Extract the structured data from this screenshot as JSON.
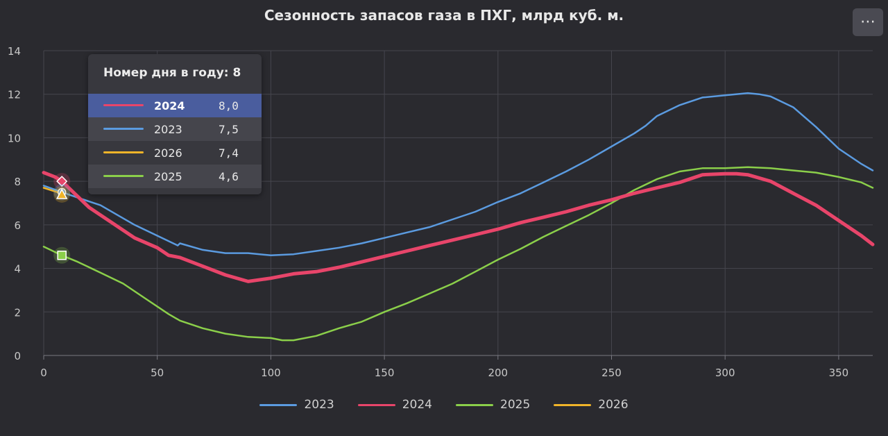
{
  "header": {
    "title": "Сезонность запасов газа в ПХГ, млрд куб. м.",
    "menu_label": "⋯"
  },
  "chart_data": {
    "type": "line",
    "title": "Сезонность запасов газа в ПХГ, млрд куб. м.",
    "xlabel": "",
    "ylabel": "",
    "xlim": [
      0,
      365
    ],
    "ylim": [
      0,
      14
    ],
    "x_ticks": [
      0,
      50,
      100,
      150,
      200,
      250,
      300,
      350
    ],
    "y_ticks": [
      0,
      2,
      4,
      6,
      8,
      10,
      12,
      14
    ],
    "grid": true,
    "legend_position": "bottom",
    "series": [
      {
        "name": "2023",
        "color": "#5b9be0",
        "points": [
          [
            0,
            7.8
          ],
          [
            8,
            7.5
          ],
          [
            15,
            7.25
          ],
          [
            25,
            6.9
          ],
          [
            40,
            6.0
          ],
          [
            50,
            5.5
          ],
          [
            59,
            5.05
          ],
          [
            60,
            5.15
          ],
          [
            70,
            4.85
          ],
          [
            80,
            4.7
          ],
          [
            90,
            4.7
          ],
          [
            100,
            4.6
          ],
          [
            110,
            4.65
          ],
          [
            120,
            4.8
          ],
          [
            130,
            4.95
          ],
          [
            140,
            5.15
          ],
          [
            150,
            5.4
          ],
          [
            160,
            5.65
          ],
          [
            170,
            5.9
          ],
          [
            180,
            6.25
          ],
          [
            190,
            6.6
          ],
          [
            200,
            7.05
          ],
          [
            210,
            7.45
          ],
          [
            220,
            7.95
          ],
          [
            230,
            8.45
          ],
          [
            240,
            9.0
          ],
          [
            250,
            9.6
          ],
          [
            260,
            10.2
          ],
          [
            265,
            10.55
          ],
          [
            270,
            11.0
          ],
          [
            280,
            11.5
          ],
          [
            290,
            11.85
          ],
          [
            300,
            11.95
          ],
          [
            310,
            12.05
          ],
          [
            315,
            12.0
          ],
          [
            320,
            11.9
          ],
          [
            330,
            11.4
          ],
          [
            340,
            10.5
          ],
          [
            350,
            9.5
          ],
          [
            360,
            8.8
          ],
          [
            365,
            8.5
          ]
        ]
      },
      {
        "name": "2024",
        "color": "#e8456a",
        "points": [
          [
            0,
            8.4
          ],
          [
            5,
            8.2
          ],
          [
            8,
            8.0
          ],
          [
            15,
            7.3
          ],
          [
            20,
            6.8
          ],
          [
            30,
            6.1
          ],
          [
            40,
            5.4
          ],
          [
            50,
            4.95
          ],
          [
            55,
            4.6
          ],
          [
            60,
            4.5
          ],
          [
            70,
            4.1
          ],
          [
            80,
            3.7
          ],
          [
            90,
            3.4
          ],
          [
            100,
            3.55
          ],
          [
            110,
            3.75
          ],
          [
            120,
            3.85
          ],
          [
            130,
            4.05
          ],
          [
            140,
            4.3
          ],
          [
            150,
            4.55
          ],
          [
            160,
            4.8
          ],
          [
            170,
            5.05
          ],
          [
            180,
            5.3
          ],
          [
            190,
            5.55
          ],
          [
            200,
            5.8
          ],
          [
            210,
            6.1
          ],
          [
            220,
            6.35
          ],
          [
            230,
            6.6
          ],
          [
            240,
            6.9
          ],
          [
            250,
            7.15
          ],
          [
            260,
            7.45
          ],
          [
            270,
            7.7
          ],
          [
            280,
            7.95
          ],
          [
            290,
            8.3
          ],
          [
            300,
            8.35
          ],
          [
            305,
            8.35
          ],
          [
            310,
            8.3
          ],
          [
            320,
            8.0
          ],
          [
            330,
            7.45
          ],
          [
            340,
            6.9
          ],
          [
            350,
            6.2
          ],
          [
            360,
            5.5
          ],
          [
            365,
            5.1
          ]
        ]
      },
      {
        "name": "2025",
        "color": "#8bcf4a",
        "points": [
          [
            0,
            5.0
          ],
          [
            8,
            4.6
          ],
          [
            15,
            4.3
          ],
          [
            25,
            3.8
          ],
          [
            35,
            3.3
          ],
          [
            45,
            2.6
          ],
          [
            55,
            1.9
          ],
          [
            60,
            1.6
          ],
          [
            70,
            1.25
          ],
          [
            80,
            1.0
          ],
          [
            90,
            0.85
          ],
          [
            100,
            0.8
          ],
          [
            105,
            0.7
          ],
          [
            110,
            0.7
          ],
          [
            120,
            0.9
          ],
          [
            130,
            1.25
          ],
          [
            140,
            1.55
          ],
          [
            150,
            2.0
          ],
          [
            160,
            2.4
          ],
          [
            170,
            2.85
          ],
          [
            180,
            3.3
          ],
          [
            190,
            3.85
          ],
          [
            200,
            4.4
          ],
          [
            210,
            4.9
          ],
          [
            220,
            5.45
          ],
          [
            230,
            5.95
          ],
          [
            240,
            6.45
          ],
          [
            250,
            7.0
          ],
          [
            260,
            7.6
          ],
          [
            270,
            8.1
          ],
          [
            280,
            8.45
          ],
          [
            290,
            8.6
          ],
          [
            300,
            8.6
          ],
          [
            310,
            8.65
          ],
          [
            320,
            8.6
          ],
          [
            330,
            8.5
          ],
          [
            340,
            8.4
          ],
          [
            350,
            8.2
          ],
          [
            360,
            7.95
          ],
          [
            365,
            7.7
          ]
        ]
      },
      {
        "name": "2026",
        "color": "#f0b429",
        "points": [
          [
            0,
            7.7
          ],
          [
            3,
            7.6
          ],
          [
            6,
            7.5
          ],
          [
            8,
            7.4
          ]
        ]
      }
    ],
    "markers": [
      {
        "series": "2024",
        "x": 8,
        "y": 8.0,
        "shape": "diamond"
      },
      {
        "series": "2023",
        "x": 8,
        "y": 7.5,
        "shape": "circle"
      },
      {
        "series": "2026",
        "x": 8,
        "y": 7.4,
        "shape": "triangle"
      },
      {
        "series": "2025",
        "x": 8,
        "y": 4.6,
        "shape": "square"
      }
    ]
  },
  "tooltip": {
    "header": "Номер дня в году: 8",
    "rows": [
      {
        "name": "2024",
        "value": "8,0",
        "color": "#e8456a"
      },
      {
        "name": "2023",
        "value": "7,5",
        "color": "#5b9be0"
      },
      {
        "name": "2026",
        "value": "7,4",
        "color": "#f0b429"
      },
      {
        "name": "2025",
        "value": "4,6",
        "color": "#8bcf4a"
      }
    ]
  },
  "legend": {
    "items": [
      {
        "name": "2023",
        "color": "#5b9be0"
      },
      {
        "name": "2024",
        "color": "#e8456a"
      },
      {
        "name": "2025",
        "color": "#8bcf4a"
      },
      {
        "name": "2026",
        "color": "#f0b429"
      }
    ]
  }
}
